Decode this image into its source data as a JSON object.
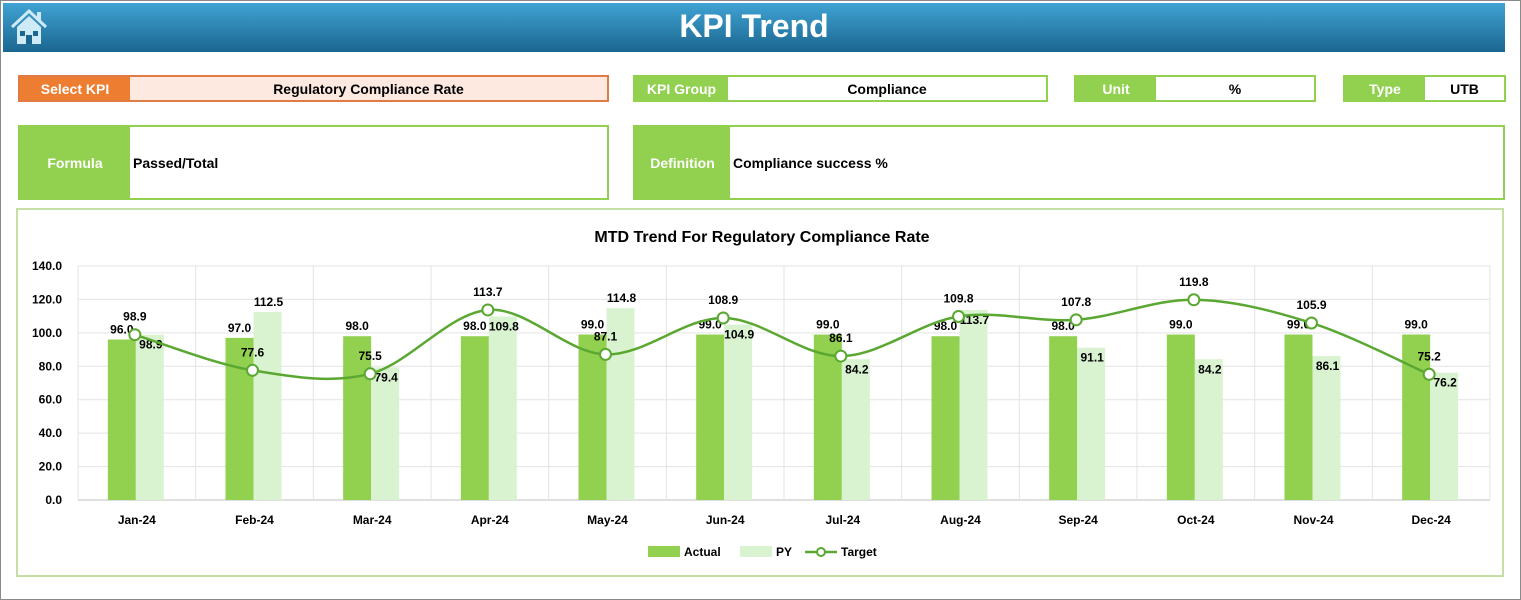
{
  "header": {
    "title": "KPI Trend",
    "home_icon": "home-icon"
  },
  "select_kpi": {
    "label": "Select KPI",
    "value": "Regulatory Compliance Rate"
  },
  "kpi_group": {
    "label": "KPI Group",
    "value": "Compliance"
  },
  "unit": {
    "label": "Unit",
    "value": "%"
  },
  "type": {
    "label": "Type",
    "value": "UTB"
  },
  "formula": {
    "label": "Formula",
    "value": "Passed/Total"
  },
  "definition": {
    "label": "Definition",
    "value": "Compliance success %"
  },
  "colors": {
    "actual": "#92d050",
    "py": "#d9f2d0",
    "target": "#5aa832",
    "header": "#1b6690",
    "select": "#ed7d31"
  },
  "chart_data": {
    "type": "bar",
    "title": "MTD Trend For Regulatory Compliance Rate",
    "categories": [
      "Jan-24",
      "Feb-24",
      "Mar-24",
      "Apr-24",
      "May-24",
      "Jun-24",
      "Jul-24",
      "Aug-24",
      "Sep-24",
      "Oct-24",
      "Nov-24",
      "Dec-24"
    ],
    "ylim": [
      0,
      140
    ],
    "yticks": [
      "0.0",
      "20.0",
      "40.0",
      "60.0",
      "80.0",
      "100.0",
      "120.0",
      "140.0"
    ],
    "grid": true,
    "legend_position": "bottom",
    "series": [
      {
        "name": "Actual",
        "type": "bar",
        "values": [
          96.0,
          97.0,
          98.0,
          98.0,
          99.0,
          99.0,
          99.0,
          98.0,
          98.0,
          99.0,
          99.0,
          99.0
        ]
      },
      {
        "name": "PY",
        "type": "bar",
        "values": [
          98.9,
          112.5,
          79.4,
          109.8,
          114.8,
          104.9,
          84.2,
          113.7,
          91.1,
          84.2,
          86.1,
          76.2
        ]
      },
      {
        "name": "Target",
        "type": "line",
        "values": [
          98.9,
          77.6,
          75.5,
          113.7,
          87.1,
          108.9,
          86.1,
          109.8,
          107.8,
          119.8,
          105.9,
          75.2
        ]
      }
    ]
  }
}
